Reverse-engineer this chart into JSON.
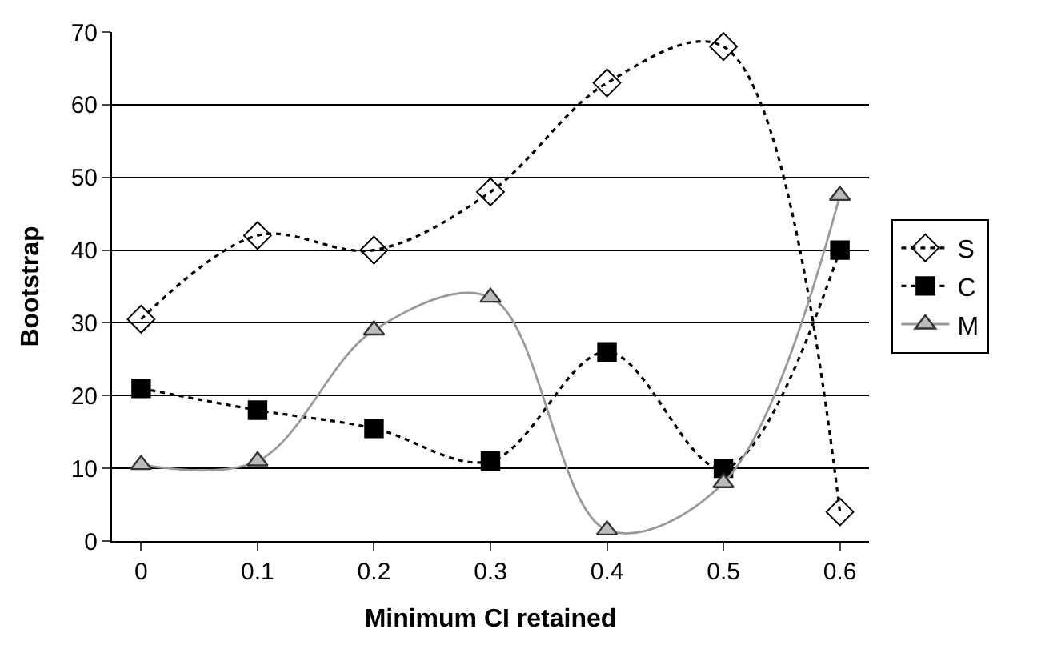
{
  "chart_data": {
    "type": "line",
    "xlabel": "Minimum CI retained",
    "ylabel": "Bootstrap",
    "categories": [
      "0",
      "0.1",
      "0.2",
      "0.3",
      "0.4",
      "0.5",
      "0.6"
    ],
    "ylim": [
      0,
      70
    ],
    "yticks": [
      0,
      10,
      20,
      30,
      40,
      50,
      60,
      70
    ],
    "grid": "y",
    "legend": "right",
    "series": [
      {
        "name": "S",
        "color": "#000000",
        "marker": "diamond",
        "line_style": "dotted",
        "values": [
          30.5,
          42,
          40,
          48,
          63,
          68,
          4
        ]
      },
      {
        "name": "C",
        "color": "#000000",
        "marker": "square",
        "line_style": "dotted",
        "values": [
          21,
          18,
          15.5,
          11,
          26,
          10,
          40
        ]
      },
      {
        "name": "M",
        "color": "#999999",
        "marker": "triangle",
        "line_style": "solid",
        "values": [
          10.5,
          11,
          29,
          33.5,
          1.5,
          8,
          47.5
        ]
      }
    ]
  }
}
